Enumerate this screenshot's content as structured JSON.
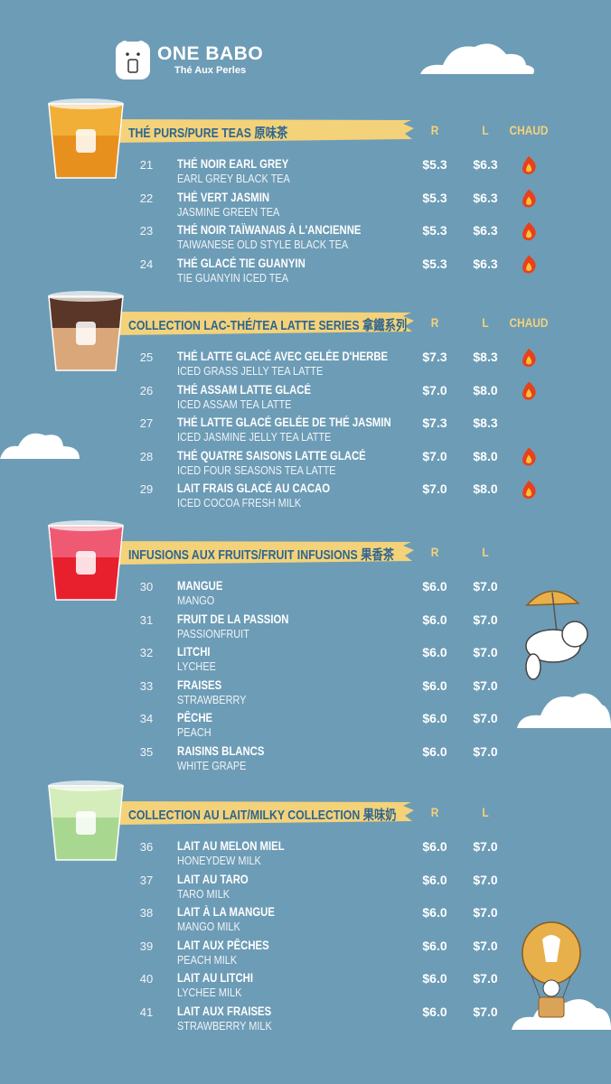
{
  "header": {
    "brand": "ONE BABO",
    "tagline": "Thé Aux Perles"
  },
  "sections": [
    {
      "title": "THÉ PURS/PURE TEAS 原味茶",
      "columns": [
        "R",
        "L",
        "CHAUD"
      ],
      "items": [
        {
          "number": "21",
          "name_fr": "THÉ NOIR EARL GREY",
          "name_en": "EARL GREY BLACK TEA",
          "price_r": "$5.3",
          "price_l": "$6.3",
          "hot": true
        },
        {
          "number": "22",
          "name_fr": "THÉ VERT JASMIN",
          "name_en": "JASMINE GREEN TEA",
          "price_r": "$5.3",
          "price_l": "$6.3",
          "hot": true
        },
        {
          "number": "23",
          "name_fr": "THÉ NOIR TAÏWANAIS À L'ANCIENNE",
          "name_en": "TAIWANESE OLD STYLE BLACK TEA",
          "price_r": "$5.3",
          "price_l": "$6.3",
          "hot": true
        },
        {
          "number": "24",
          "name_fr": "THÉ GLACÉ TIE GUANYIN",
          "name_en": "TIE GUANYIN ICED TEA",
          "price_r": "$5.3",
          "price_l": "$6.3",
          "hot": true
        }
      ]
    },
    {
      "title": "COLLECTION LAC-THÉ/TEA LATTE SERIES 拿鐵系列",
      "columns": [
        "R",
        "L",
        "CHAUD"
      ],
      "items": [
        {
          "number": "25",
          "name_fr": "THÉ LATTE GLACÉ AVEC GELÉE D'HERBE",
          "name_en": "ICED GRASS JELLY TEA LATTE",
          "price_r": "$7.3",
          "price_l": "$8.3",
          "hot": true
        },
        {
          "number": "26",
          "name_fr": "THÉ ASSAM LATTE GLACÉ",
          "name_en": "ICED ASSAM TEA LATTE",
          "price_r": "$7.0",
          "price_l": "$8.0",
          "hot": true
        },
        {
          "number": "27",
          "name_fr": "THÉ LATTE GLACÉ GELÉE DE THÉ JASMIN",
          "name_en": "ICED JASMINE JELLY TEA LATTE",
          "price_r": "$7.3",
          "price_l": "$8.3",
          "hot": false
        },
        {
          "number": "28",
          "name_fr": "THÉ QUATRE SAISONS LATTE GLACÉ",
          "name_en": "ICED FOUR SEASONS TEA LATTE",
          "price_r": "$7.0",
          "price_l": "$8.0",
          "hot": true
        },
        {
          "number": "29",
          "name_fr": "LAIT FRAIS GLACÉ AU CACAO",
          "name_en": "ICED COCOA FRESH MILK",
          "price_r": "$7.0",
          "price_l": "$8.0",
          "hot": true
        }
      ]
    },
    {
      "title": "INFUSIONS AUX FRUITS/FRUIT INFUSIONS 果香茶",
      "columns": [
        "R",
        "L"
      ],
      "items": [
        {
          "number": "30",
          "name_fr": "MANGUE",
          "name_en": "MANGO",
          "price_r": "$6.0",
          "price_l": "$7.0",
          "hot": false
        },
        {
          "number": "31",
          "name_fr": "FRUIT DE LA PASSION",
          "name_en": "PASSIONFRUIT",
          "price_r": "$6.0",
          "price_l": "$7.0",
          "hot": false
        },
        {
          "number": "32",
          "name_fr": "LITCHI",
          "name_en": "LYCHEE",
          "price_r": "$6.0",
          "price_l": "$7.0",
          "hot": false
        },
        {
          "number": "33",
          "name_fr": "FRAISES",
          "name_en": "STRAWBERRY",
          "price_r": "$6.0",
          "price_l": "$7.0",
          "hot": false
        },
        {
          "number": "34",
          "name_fr": "PÊCHE",
          "name_en": "PEACH",
          "price_r": "$6.0",
          "price_l": "$7.0",
          "hot": false
        },
        {
          "number": "35",
          "name_fr": "RAISINS BLANCS",
          "name_en": "WHITE GRAPE",
          "price_r": "$6.0",
          "price_l": "$7.0",
          "hot": false
        }
      ]
    },
    {
      "title": "COLLECTION AU LAIT/MILKY COLLECTION 果味奶",
      "columns": [
        "R",
        "L"
      ],
      "items": [
        {
          "number": "36",
          "name_fr": "LAIT AU MELON MIEL",
          "name_en": "HONEYDEW MILK",
          "price_r": "$6.0",
          "price_l": "$7.0",
          "hot": false
        },
        {
          "number": "37",
          "name_fr": "LAIT AU TARO",
          "name_en": "TARO MILK",
          "price_r": "$6.0",
          "price_l": "$7.0",
          "hot": false
        },
        {
          "number": "38",
          "name_fr": "LAIT À LA MANGUE",
          "name_en": "MANGO MILK",
          "price_r": "$6.0",
          "price_l": "$7.0",
          "hot": false
        },
        {
          "number": "39",
          "name_fr": "LAIT AUX PÊCHES",
          "name_en": "PEACH MILK",
          "price_r": "$6.0",
          "price_l": "$7.0",
          "hot": false
        },
        {
          "number": "40",
          "name_fr": "LAIT AU LITCHI",
          "name_en": "LYCHEE MILK",
          "price_r": "$6.0",
          "price_l": "$7.0",
          "hot": false
        },
        {
          "number": "41",
          "name_fr": "LAIT AUX FRAISES",
          "name_en": "STRAWBERRY MILK",
          "price_r": "$6.0",
          "price_l": "$7.0",
          "hot": false
        }
      ]
    }
  ]
}
